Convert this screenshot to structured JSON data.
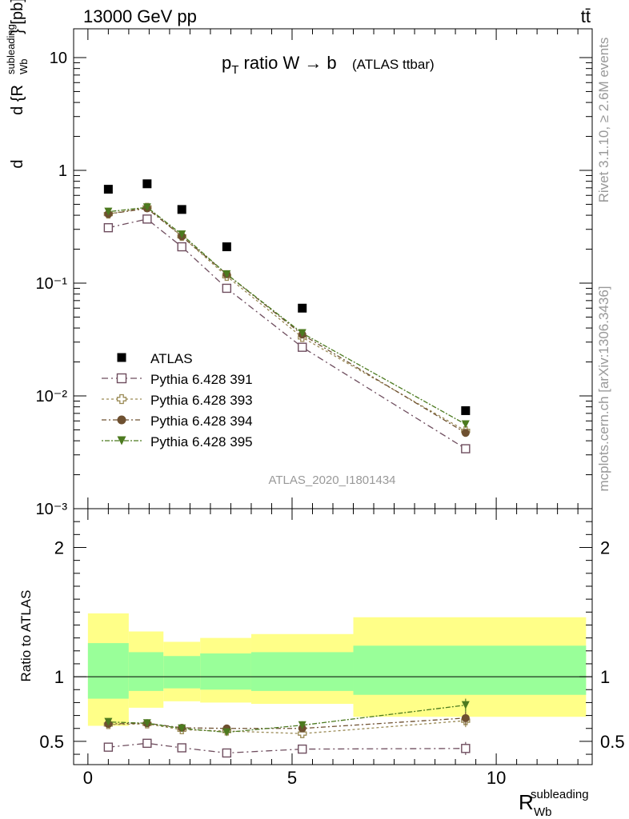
{
  "header": {
    "left": "13000 GeV pp",
    "right": "tt̄"
  },
  "side_labels": {
    "rivet": "Rivet 3.1.10, ≥ 2.6M events",
    "mcplots": "mcplots.cern.ch [arXiv:1306.3436]"
  },
  "chart_data": [
    {
      "type": "scatter",
      "title_main": "p",
      "title_sub": "T",
      "title_rest": " ratio W → b",
      "title_small": "(ATLAS ttbar)",
      "watermark": "ATLAS_2020_I1801434",
      "ylabel": "d{R_Wb^subleading} d σ^fid [pb]",
      "yscale": "log",
      "ylim": [
        0.001,
        18
      ],
      "xlim": [
        -0.35,
        12.35
      ],
      "x_ticks": [
        "0",
        "5",
        "10"
      ],
      "y_ticks": [
        "10⁻³",
        "10⁻²",
        "10⁻¹",
        "1",
        "10"
      ],
      "legend_position": "center-left",
      "series": [
        {
          "name": "ATLAS",
          "marker": "square-filled",
          "color": "#000000",
          "x": [
            0.5,
            1.45,
            2.3,
            3.4,
            5.25,
            9.25
          ],
          "y": [
            0.68,
            0.76,
            0.45,
            0.21,
            0.06,
            0.0074
          ]
        },
        {
          "name": "Pythia 6.428 391",
          "marker": "square-open",
          "color": "#6e4d5e",
          "x": [
            0.5,
            1.45,
            2.3,
            3.4,
            5.25,
            9.25
          ],
          "y": [
            0.31,
            0.37,
            0.21,
            0.09,
            0.027,
            0.0034
          ]
        },
        {
          "name": "Pythia 6.428 393",
          "marker": "plus-open",
          "color": "#9a8a55",
          "x": [
            0.5,
            1.45,
            2.3,
            3.4,
            5.25,
            9.25
          ],
          "y": [
            0.41,
            0.47,
            0.26,
            0.115,
            0.033,
            0.0049
          ]
        },
        {
          "name": "Pythia 6.428 394",
          "marker": "circle-filled",
          "color": "#6e5030",
          "x": [
            0.5,
            1.45,
            2.3,
            3.4,
            5.25,
            9.25
          ],
          "y": [
            0.41,
            0.46,
            0.26,
            0.12,
            0.035,
            0.0047
          ]
        },
        {
          "name": "Pythia 6.428 395",
          "marker": "triangle-down",
          "color": "#4c7a1f",
          "x": [
            0.5,
            1.45,
            2.3,
            3.4,
            5.25,
            9.25
          ],
          "y": [
            0.43,
            0.47,
            0.27,
            0.12,
            0.036,
            0.0056
          ]
        }
      ]
    },
    {
      "type": "scatter",
      "ylabel": "Ratio to ATLAS",
      "xlabel_main": "R",
      "xlabel_sup": "subleading",
      "xlabel_sub": "Wb",
      "ylim": [
        0.32,
        2.3
      ],
      "xlim": [
        -0.35,
        12.35
      ],
      "x_ticks": [
        "0",
        "5",
        "10"
      ],
      "y_ticks": [
        "0.5",
        "1",
        "2"
      ],
      "bands": {
        "edges": [
          0,
          1.0,
          1.85,
          2.75,
          4.0,
          6.5,
          12.2
        ],
        "green_low": [
          0.83,
          0.89,
          0.91,
          0.9,
          0.89,
          0.86
        ],
        "green_high": [
          1.26,
          1.19,
          1.16,
          1.18,
          1.19,
          1.24
        ],
        "yellow_low": [
          0.62,
          0.76,
          0.81,
          0.8,
          0.79,
          0.69
        ],
        "yellow_high": [
          1.49,
          1.35,
          1.27,
          1.3,
          1.33,
          1.46
        ],
        "green_color": "#99ff99",
        "yellow_color": "#ffff88"
      },
      "series": [
        {
          "name": "Pythia 6.428 391",
          "x": [
            0.5,
            1.45,
            2.3,
            3.4,
            5.25,
            9.25
          ],
          "y": [
            0.455,
            0.485,
            0.45,
            0.41,
            0.44,
            0.445
          ],
          "err": [
            0.012,
            0.015,
            0.015,
            0.02,
            0.03,
            0.05
          ]
        },
        {
          "name": "Pythia 6.428 393",
          "x": [
            0.5,
            1.45,
            2.3,
            3.4,
            5.25,
            9.25
          ],
          "y": [
            0.63,
            0.635,
            0.59,
            0.58,
            0.56,
            0.66
          ],
          "err": [
            0.015,
            0.015,
            0.02,
            0.02,
            0.03,
            0.05
          ]
        },
        {
          "name": "Pythia 6.428 394",
          "x": [
            0.5,
            1.45,
            2.3,
            3.4,
            5.25,
            9.25
          ],
          "y": [
            0.635,
            0.64,
            0.605,
            0.6,
            0.6,
            0.68
          ],
          "err": [
            0.015,
            0.015,
            0.02,
            0.02,
            0.03,
            0.05
          ]
        },
        {
          "name": "Pythia 6.428 395",
          "x": [
            0.5,
            1.45,
            2.3,
            3.4,
            5.25,
            9.25
          ],
          "y": [
            0.65,
            0.64,
            0.6,
            0.57,
            0.625,
            0.78
          ],
          "err": [
            0.015,
            0.015,
            0.02,
            0.02,
            0.03,
            0.05
          ]
        }
      ]
    }
  ]
}
